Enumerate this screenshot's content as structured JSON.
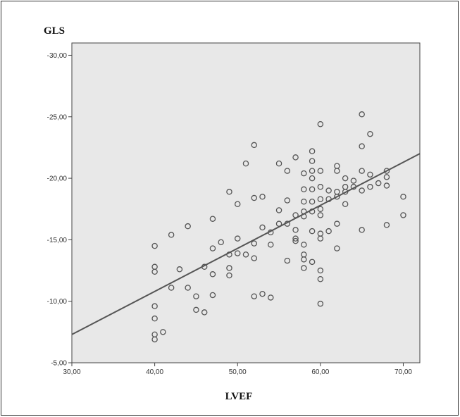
{
  "chart_data": {
    "type": "scatter",
    "title": "",
    "xlabel": "LVEF",
    "ylabel": "GLS",
    "xlim": [
      30,
      72
    ],
    "ylim": [
      -5,
      -31
    ],
    "x_ticks": [
      30,
      40,
      50,
      60,
      70
    ],
    "x_tick_labels": [
      "30,00",
      "40,00",
      "50,00",
      "60,00",
      "70,00"
    ],
    "y_ticks": [
      -5,
      -10,
      -15,
      -20,
      -25,
      -30
    ],
    "y_tick_labels": [
      "-5,00",
      "-10,00",
      "-15,00",
      "-20,00",
      "-25,00",
      "-30,00"
    ],
    "grid": false,
    "legend": "none",
    "plot_background": "#e8e8e8",
    "marker_color": "#555555",
    "line_color": "#555555",
    "fit_line": {
      "x": [
        30,
        72
      ],
      "y": [
        -7.3,
        -22.0
      ]
    },
    "points": [
      {
        "x": 40,
        "y": -14.5
      },
      {
        "x": 40,
        "y": -12.8
      },
      {
        "x": 40,
        "y": -12.4
      },
      {
        "x": 40,
        "y": -9.6
      },
      {
        "x": 40,
        "y": -8.6
      },
      {
        "x": 40,
        "y": -7.3
      },
      {
        "x": 40,
        "y": -6.9
      },
      {
        "x": 41,
        "y": -7.5
      },
      {
        "x": 42,
        "y": -15.4
      },
      {
        "x": 42,
        "y": -11.1
      },
      {
        "x": 43,
        "y": -12.6
      },
      {
        "x": 44,
        "y": -16.1
      },
      {
        "x": 44,
        "y": -11.1
      },
      {
        "x": 45,
        "y": -10.4
      },
      {
        "x": 45,
        "y": -9.3
      },
      {
        "x": 46,
        "y": -12.8
      },
      {
        "x": 46,
        "y": -9.1
      },
      {
        "x": 47,
        "y": -16.7
      },
      {
        "x": 47,
        "y": -14.3
      },
      {
        "x": 47,
        "y": -12.2
      },
      {
        "x": 47,
        "y": -10.5
      },
      {
        "x": 48,
        "y": -14.8
      },
      {
        "x": 49,
        "y": -18.9
      },
      {
        "x": 49,
        "y": -13.8
      },
      {
        "x": 49,
        "y": -12.7
      },
      {
        "x": 49,
        "y": -12.1
      },
      {
        "x": 50,
        "y": -17.9
      },
      {
        "x": 50,
        "y": -15.1
      },
      {
        "x": 50,
        "y": -13.9
      },
      {
        "x": 51,
        "y": -21.2
      },
      {
        "x": 51,
        "y": -13.8
      },
      {
        "x": 52,
        "y": -22.7
      },
      {
        "x": 52,
        "y": -18.4
      },
      {
        "x": 52,
        "y": -14.7
      },
      {
        "x": 52,
        "y": -13.5
      },
      {
        "x": 52,
        "y": -10.4
      },
      {
        "x": 53,
        "y": -18.5
      },
      {
        "x": 53,
        "y": -16.0
      },
      {
        "x": 53,
        "y": -10.6
      },
      {
        "x": 54,
        "y": -15.6
      },
      {
        "x": 54,
        "y": -14.6
      },
      {
        "x": 54,
        "y": -10.3
      },
      {
        "x": 55,
        "y": -21.2
      },
      {
        "x": 55,
        "y": -17.4
      },
      {
        "x": 55,
        "y": -16.3
      },
      {
        "x": 56,
        "y": -20.6
      },
      {
        "x": 56,
        "y": -18.2
      },
      {
        "x": 56,
        "y": -16.3
      },
      {
        "x": 56,
        "y": -13.3
      },
      {
        "x": 57,
        "y": -21.7
      },
      {
        "x": 57,
        "y": -17.0
      },
      {
        "x": 57,
        "y": -15.8
      },
      {
        "x": 57,
        "y": -15.1
      },
      {
        "x": 57,
        "y": -14.9
      },
      {
        "x": 58,
        "y": -20.4
      },
      {
        "x": 58,
        "y": -19.1
      },
      {
        "x": 58,
        "y": -18.1
      },
      {
        "x": 58,
        "y": -17.3
      },
      {
        "x": 58,
        "y": -16.9
      },
      {
        "x": 58,
        "y": -14.6
      },
      {
        "x": 58,
        "y": -13.8
      },
      {
        "x": 58,
        "y": -13.4
      },
      {
        "x": 58,
        "y": -12.7
      },
      {
        "x": 59,
        "y": -22.2
      },
      {
        "x": 59,
        "y": -21.4
      },
      {
        "x": 59,
        "y": -20.6
      },
      {
        "x": 59,
        "y": -20.0
      },
      {
        "x": 59,
        "y": -19.1
      },
      {
        "x": 59,
        "y": -18.1
      },
      {
        "x": 59,
        "y": -17.3
      },
      {
        "x": 59,
        "y": -15.7
      },
      {
        "x": 59,
        "y": -13.2
      },
      {
        "x": 60,
        "y": -24.4
      },
      {
        "x": 60,
        "y": -20.6
      },
      {
        "x": 60,
        "y": -19.3
      },
      {
        "x": 60,
        "y": -18.3
      },
      {
        "x": 60,
        "y": -17.5
      },
      {
        "x": 60,
        "y": -17.0
      },
      {
        "x": 60,
        "y": -15.5
      },
      {
        "x": 60,
        "y": -15.1
      },
      {
        "x": 60,
        "y": -12.5
      },
      {
        "x": 60,
        "y": -11.8
      },
      {
        "x": 60,
        "y": -9.8
      },
      {
        "x": 61,
        "y": -19.0
      },
      {
        "x": 61,
        "y": -18.3
      },
      {
        "x": 61,
        "y": -15.7
      },
      {
        "x": 62,
        "y": -21.0
      },
      {
        "x": 62,
        "y": -20.6
      },
      {
        "x": 62,
        "y": -18.9
      },
      {
        "x": 62,
        "y": -18.5
      },
      {
        "x": 62,
        "y": -16.3
      },
      {
        "x": 62,
        "y": -14.3
      },
      {
        "x": 63,
        "y": -20.0
      },
      {
        "x": 63,
        "y": -19.3
      },
      {
        "x": 63,
        "y": -18.9
      },
      {
        "x": 63,
        "y": -17.9
      },
      {
        "x": 64,
        "y": -19.8
      },
      {
        "x": 64,
        "y": -19.3
      },
      {
        "x": 65,
        "y": -25.2
      },
      {
        "x": 65,
        "y": -22.6
      },
      {
        "x": 65,
        "y": -20.6
      },
      {
        "x": 65,
        "y": -19.0
      },
      {
        "x": 65,
        "y": -15.8
      },
      {
        "x": 66,
        "y": -23.6
      },
      {
        "x": 66,
        "y": -20.3
      },
      {
        "x": 66,
        "y": -19.3
      },
      {
        "x": 67,
        "y": -19.6
      },
      {
        "x": 68,
        "y": -20.6
      },
      {
        "x": 68,
        "y": -20.1
      },
      {
        "x": 68,
        "y": -19.4
      },
      {
        "x": 68,
        "y": -16.2
      },
      {
        "x": 70,
        "y": -18.5
      },
      {
        "x": 70,
        "y": -17.0
      }
    ]
  }
}
